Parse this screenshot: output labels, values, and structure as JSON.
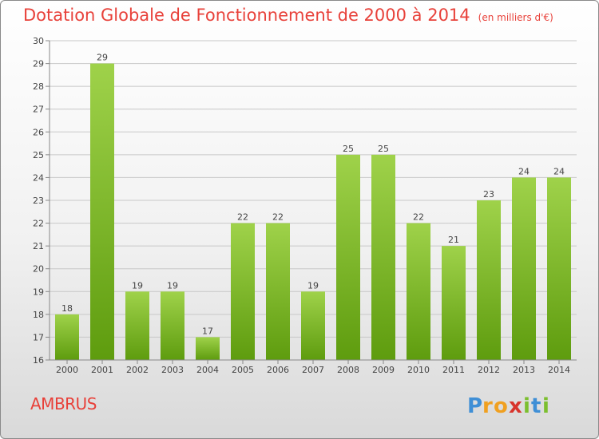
{
  "header": {
    "title": "Dotation Globale de Fonctionnement de 2000 à 2014",
    "subtitle": "(en milliers d'€)"
  },
  "footer": {
    "commune": "AMBRUS",
    "logo_text": "Proxiti"
  },
  "colors": {
    "title": "#e8413a",
    "bar_light": "#9fd24a",
    "bar_dark": "#5e9c0e",
    "grid": "#c8c8c8"
  },
  "chart_data": {
    "type": "bar",
    "categories": [
      "2000",
      "2001",
      "2002",
      "2003",
      "2004",
      "2005",
      "2006",
      "2007",
      "2008",
      "2009",
      "2010",
      "2011",
      "2012",
      "2013",
      "2014"
    ],
    "values": [
      18,
      29,
      19,
      19,
      17,
      22,
      22,
      19,
      25,
      25,
      22,
      21,
      23,
      24,
      24
    ],
    "ylim": [
      16,
      30
    ],
    "yticks": [
      16,
      17,
      18,
      19,
      20,
      21,
      22,
      23,
      24,
      25,
      26,
      27,
      28,
      29,
      30
    ],
    "grid": true,
    "data_labels": true
  }
}
